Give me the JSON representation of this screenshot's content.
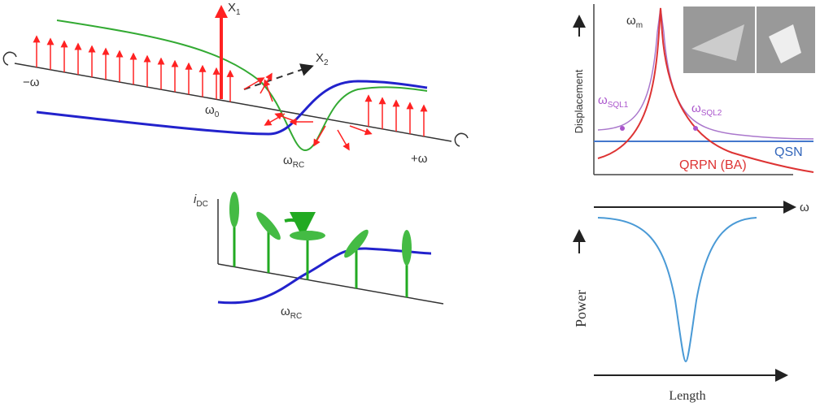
{
  "left_top": {
    "x1": {
      "base": "X",
      "sub": "1"
    },
    "x2": {
      "base": "X",
      "sub": "2"
    },
    "minus_omega": "−ω",
    "plus_omega": "+ω",
    "omega_0": {
      "base": "ω",
      "sub": "0"
    },
    "omega_rc": {
      "base": "ω",
      "sub": "RC"
    }
  },
  "left_bottom": {
    "i_dc": {
      "base": "i",
      "sub": "DC"
    },
    "omega_rc": {
      "base": "ω",
      "sub": "RC"
    }
  },
  "right_top": {
    "omega_m": {
      "base": "ω",
      "sub": "m"
    },
    "omega_sql1": {
      "base": "ω",
      "sub": "SQL1"
    },
    "omega_sql2": {
      "base": "ω",
      "sub": "SQL2"
    },
    "y_label": "Displacement",
    "qrpn": "QRPN (BA)",
    "qsn": "QSN",
    "x_label": "ω"
  },
  "right_bottom": {
    "y_label": "Power",
    "x_label": "Length"
  }
}
